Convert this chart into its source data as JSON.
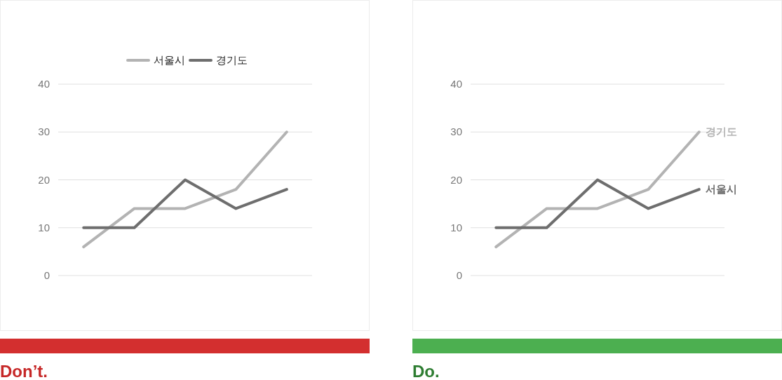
{
  "chart_data": [
    {
      "type": "line",
      "categories": [
        null,
        null,
        null,
        null,
        null
      ],
      "ylim": [
        0,
        40
      ],
      "yticks": [
        0,
        10,
        20,
        30,
        40
      ],
      "grid": "y",
      "legend": "top",
      "annotations": [
        "Don’t."
      ],
      "series": [
        {
          "name": "서울시",
          "color": "#b3b3b3",
          "values": [
            6,
            14,
            14,
            18,
            30
          ]
        },
        {
          "name": "경기도",
          "color": "#6e6e6e",
          "values": [
            10,
            10,
            20,
            14,
            18
          ]
        }
      ]
    },
    {
      "type": "line",
      "categories": [
        null,
        null,
        null,
        null,
        null
      ],
      "ylim": [
        0,
        40
      ],
      "yticks": [
        0,
        10,
        20,
        30,
        40
      ],
      "grid": "y",
      "annotations": [
        "Do."
      ],
      "series": [
        {
          "name": "경기도",
          "color": "#b3b3b3",
          "values": [
            6,
            14,
            14,
            18,
            30
          ]
        },
        {
          "name": "서울시",
          "color": "#6e6e6e",
          "values": [
            10,
            10,
            20,
            14,
            18
          ]
        }
      ]
    }
  ]
}
